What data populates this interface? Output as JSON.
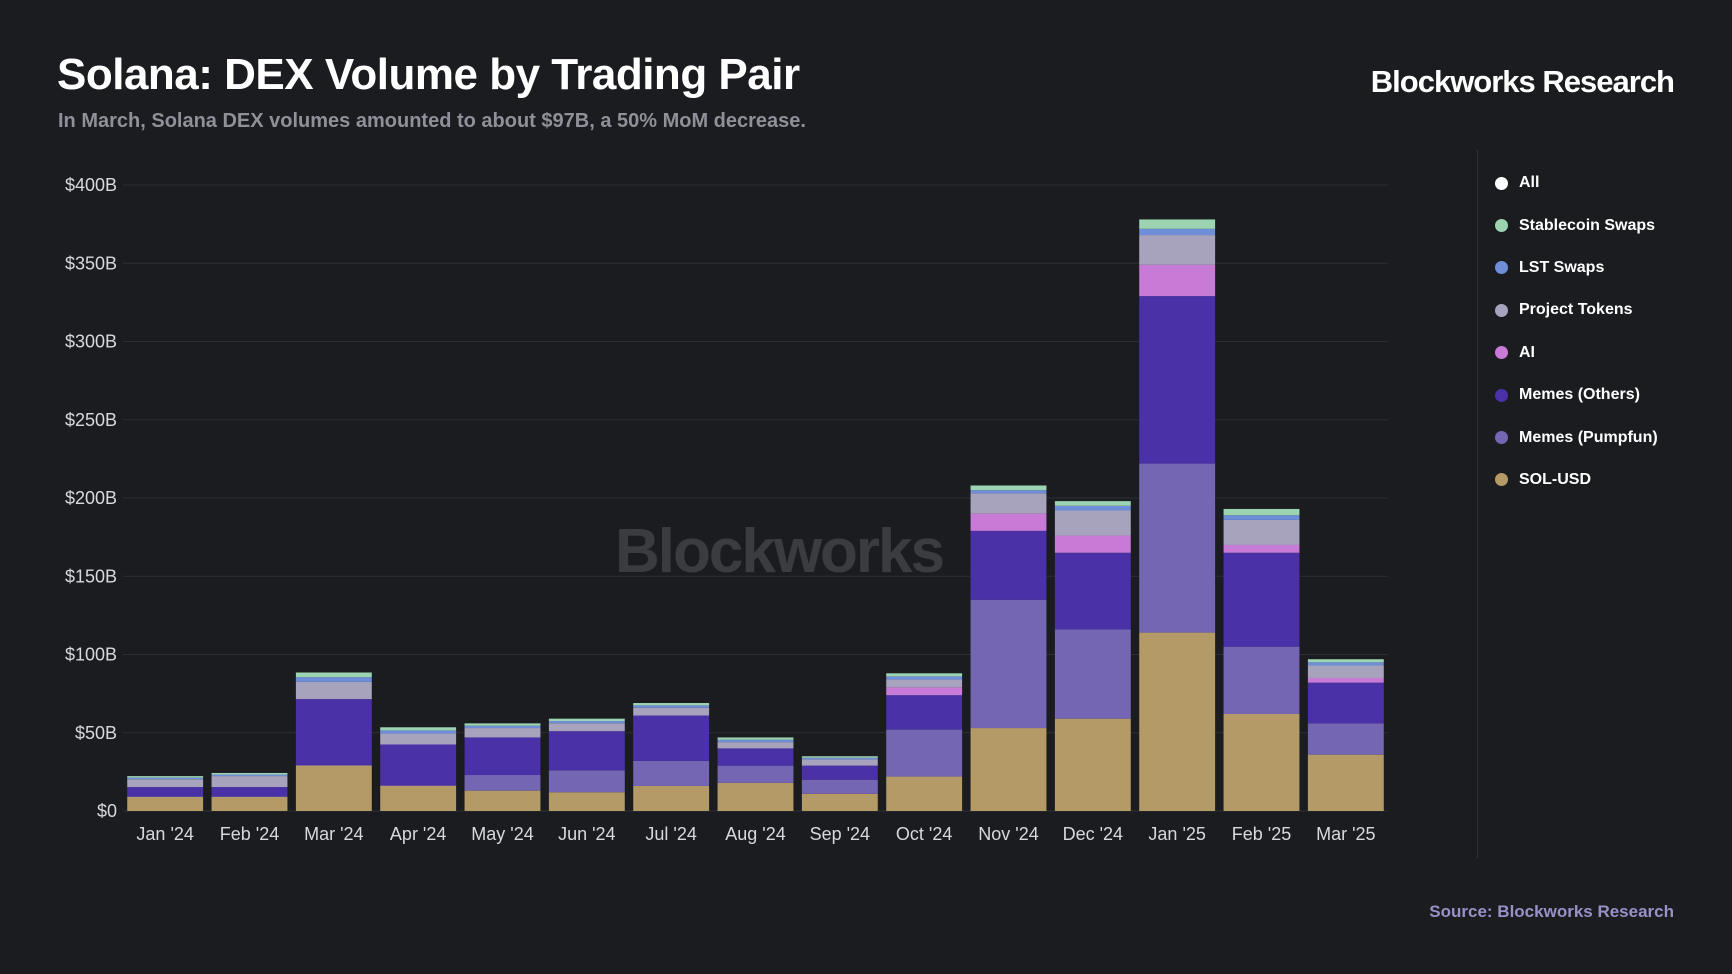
{
  "header": {
    "title": "Solana: DEX Volume by Trading Pair",
    "subtitle": "In March, Solana DEX volumes amounted to about $97B, a 50% MoM decrease.",
    "brand": "Blockworks Research"
  },
  "footer": {
    "source": "Source: Blockworks Research"
  },
  "watermark": "Blockworks",
  "legend": [
    {
      "label": "All",
      "color": "#ffffff"
    },
    {
      "label": "Stablecoin Swaps",
      "color": "#9cd3b0"
    },
    {
      "label": "LST Swaps",
      "color": "#6f8ed8"
    },
    {
      "label": "Project Tokens",
      "color": "#a8a3bd"
    },
    {
      "label": "AI",
      "color": "#c77ad6"
    },
    {
      "label": "Memes (Others)",
      "color": "#4a31a8"
    },
    {
      "label": "Memes (Pumpfun)",
      "color": "#7466b2"
    },
    {
      "label": "SOL-USD",
      "color": "#b39a66"
    }
  ],
  "chart_data": {
    "type": "bar",
    "stacked": true,
    "y_tick_labels": [
      "$0",
      "$50B",
      "$100B",
      "$150B",
      "$200B",
      "$250B",
      "$300B",
      "$350B",
      "$400B"
    ],
    "y_ticks": [
      0,
      50,
      100,
      150,
      200,
      250,
      300,
      350,
      400
    ],
    "ylim": [
      0,
      400
    ],
    "grid": true,
    "legend_position": "right",
    "categories": [
      "Jan '24",
      "Feb '24",
      "Mar '24",
      "Apr '24",
      "May '24",
      "Jun '24",
      "Jul '24",
      "Aug '24",
      "Sep '24",
      "Oct '24",
      "Nov '24",
      "Dec '24",
      "Jan '25",
      "Feb '25",
      "Mar '25"
    ],
    "series": [
      {
        "name": "SOL-USD",
        "color": "#b39a66",
        "values": [
          9,
          9,
          29,
          16,
          13,
          12,
          16,
          18,
          11,
          22,
          53,
          59,
          114,
          62,
          36
        ]
      },
      {
        "name": "Memes (Pumpfun)",
        "color": "#7466b2",
        "values": [
          0.3,
          0.3,
          0.5,
          0.5,
          10,
          14,
          16,
          11,
          9,
          30,
          82,
          57,
          108,
          43,
          20
        ]
      },
      {
        "name": "Memes (Others)",
        "color": "#4a31a8",
        "values": [
          6,
          6,
          42,
          26,
          24,
          25,
          29,
          11,
          9,
          22,
          44,
          49,
          107,
          60,
          26
        ]
      },
      {
        "name": "AI",
        "color": "#c77ad6",
        "values": [
          0,
          0,
          0,
          0,
          0,
          0,
          0,
          0,
          0,
          5,
          11,
          11,
          20,
          5,
          3
        ]
      },
      {
        "name": "Project Tokens",
        "color": "#a8a3bd",
        "values": [
          5,
          7,
          11,
          7,
          6,
          5,
          5,
          4,
          4,
          5,
          13,
          16,
          19,
          16,
          8
        ]
      },
      {
        "name": "LST Swaps",
        "color": "#6f8ed8",
        "values": [
          1,
          1,
          3,
          2,
          1.5,
          1.5,
          1.5,
          1.5,
          1,
          2,
          2,
          3,
          4,
          3,
          2
        ]
      },
      {
        "name": "Stablecoin Swaps",
        "color": "#9cd3b0",
        "values": [
          1,
          1,
          3,
          2,
          1.5,
          1.5,
          1.5,
          1.5,
          1,
          2,
          3,
          3,
          6,
          4,
          2
        ]
      }
    ]
  }
}
